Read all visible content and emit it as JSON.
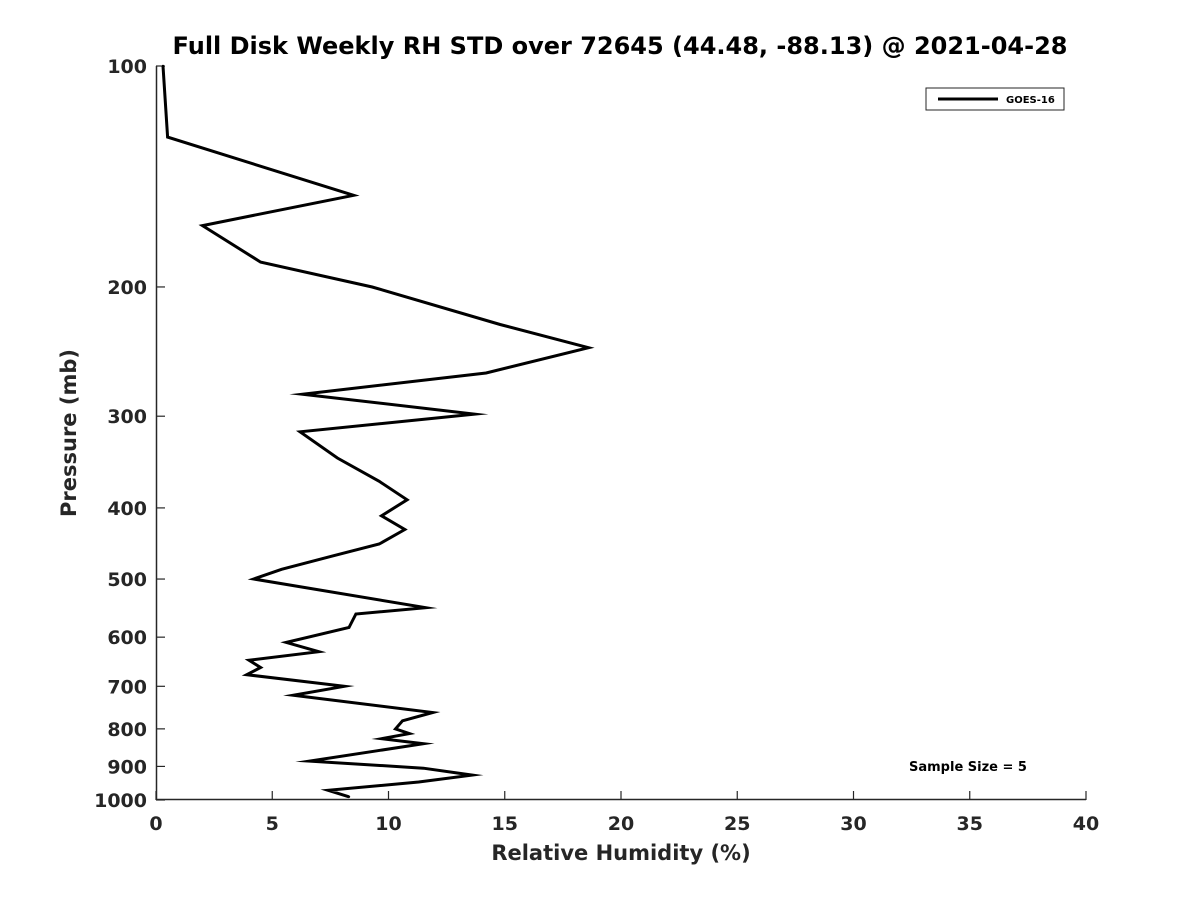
{
  "chart_data": {
    "type": "line",
    "title": "Full Disk Weekly RH STD over 72645 (44.48, -88.13) @ 2021-04-28",
    "xlabel": "Relative Humidity (%)",
    "ylabel": "Pressure (mb)",
    "xlim": [
      0,
      40
    ],
    "ylim": [
      100,
      1000
    ],
    "y_scale": "log",
    "y_reversed": true,
    "x_ticks": [
      0,
      5,
      10,
      15,
      20,
      25,
      30,
      35,
      40
    ],
    "y_ticks": [
      100,
      200,
      300,
      400,
      500,
      600,
      700,
      800,
      900,
      1000
    ],
    "grid": false,
    "legend_position": "top-right",
    "annotation": "Sample Size = 5",
    "series": [
      {
        "name": "GOES-16",
        "color": "#000000",
        "points": [
          [
            0.3,
            100
          ],
          [
            0.5,
            125
          ],
          [
            8.5,
            150
          ],
          [
            2.0,
            165
          ],
          [
            4.5,
            185
          ],
          [
            9.3,
            200
          ],
          [
            14.8,
            225
          ],
          [
            18.6,
            242
          ],
          [
            14.2,
            262
          ],
          [
            6.3,
            280
          ],
          [
            13.7,
            298
          ],
          [
            6.2,
            315
          ],
          [
            7.8,
            342
          ],
          [
            9.6,
            368
          ],
          [
            10.8,
            390
          ],
          [
            9.7,
            410
          ],
          [
            10.7,
            428
          ],
          [
            9.6,
            448
          ],
          [
            7.6,
            465
          ],
          [
            5.4,
            485
          ],
          [
            4.2,
            500
          ],
          [
            11.6,
            547
          ],
          [
            8.6,
            558
          ],
          [
            8.3,
            582
          ],
          [
            5.6,
            610
          ],
          [
            7.0,
            628
          ],
          [
            4.0,
            645
          ],
          [
            4.5,
            660
          ],
          [
            3.9,
            675
          ],
          [
            8.1,
            700
          ],
          [
            5.9,
            720
          ],
          [
            11.9,
            760
          ],
          [
            10.6,
            780
          ],
          [
            10.3,
            800
          ],
          [
            10.9,
            812
          ],
          [
            9.7,
            825
          ],
          [
            11.5,
            838
          ],
          [
            9.5,
            857
          ],
          [
            6.6,
            885
          ],
          [
            11.5,
            905
          ],
          [
            13.6,
            925
          ],
          [
            11.3,
            945
          ],
          [
            7.4,
            970
          ],
          [
            8.3,
            990
          ]
        ]
      }
    ]
  }
}
